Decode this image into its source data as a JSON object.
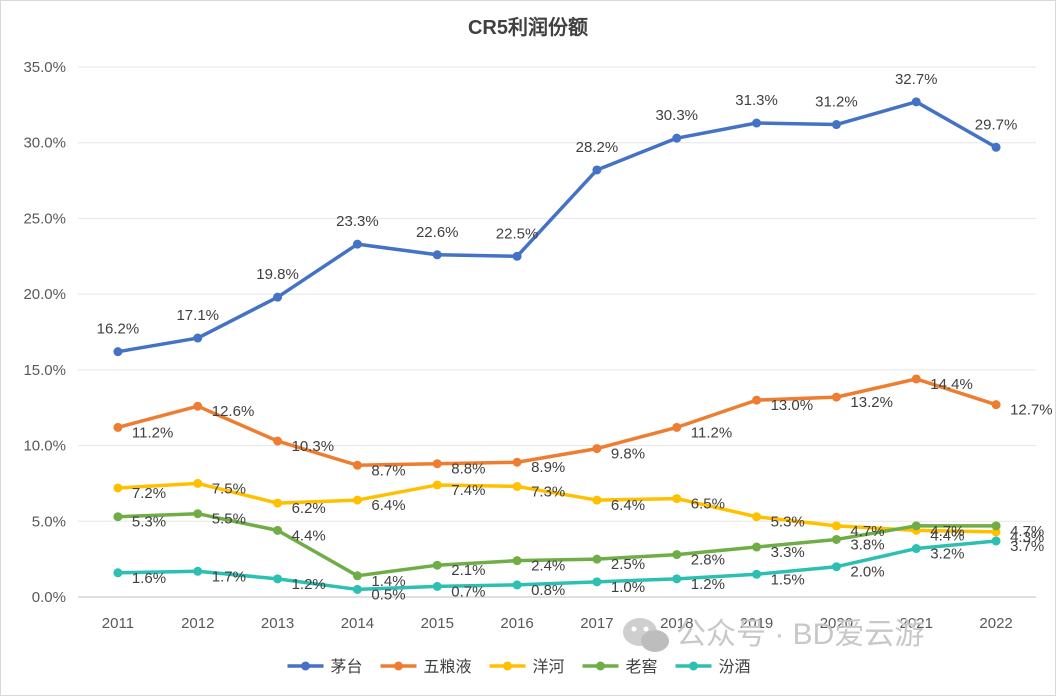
{
  "chart_data": {
    "type": "line",
    "title": "CR5利润份额",
    "xlabel": "",
    "ylabel": "",
    "categories": [
      "2011",
      "2012",
      "2013",
      "2014",
      "2015",
      "2016",
      "2017",
      "2018",
      "2019",
      "2020",
      "2021",
      "2022"
    ],
    "ylim": [
      0,
      35
    ],
    "yticks": [
      "0.0%",
      "5.0%",
      "10.0%",
      "15.0%",
      "20.0%",
      "25.0%",
      "30.0%",
      "35.0%"
    ],
    "grid": true,
    "legend_position": "bottom",
    "series": [
      {
        "name": "茅台",
        "color": "#4472c4",
        "values": [
          16.2,
          17.1,
          19.8,
          23.3,
          22.6,
          22.5,
          28.2,
          30.3,
          31.3,
          31.2,
          32.7,
          29.7
        ],
        "labels": [
          "16.2%",
          "17.1%",
          "19.8%",
          "23.3%",
          "22.6%",
          "22.5%",
          "28.2%",
          "30.3%",
          "31.3%",
          "31.2%",
          "32.7%",
          "29.7%"
        ]
      },
      {
        "name": "五粮液",
        "color": "#ed7d31",
        "values": [
          11.2,
          12.6,
          10.3,
          8.7,
          8.8,
          8.9,
          9.8,
          11.2,
          13.0,
          13.2,
          14.4,
          12.7
        ],
        "labels": [
          "11.2%",
          "12.6%",
          "10.3%",
          "8.7%",
          "8.8%",
          "8.9%",
          "9.8%",
          "11.2%",
          "13.0%",
          "13.2%",
          "14.4%",
          "12.7%"
        ]
      },
      {
        "name": "洋河",
        "color": "#ffc000",
        "values": [
          7.2,
          7.5,
          6.2,
          6.4,
          7.4,
          7.3,
          6.4,
          6.5,
          5.3,
          4.7,
          4.4,
          4.3
        ],
        "labels": [
          "7.2%",
          "7.5%",
          "6.2%",
          "6.4%",
          "7.4%",
          "7.3%",
          "6.4%",
          "6.5%",
          "5.3%",
          "4.7%",
          "4.4%",
          "4.3%"
        ]
      },
      {
        "name": "老窖",
        "color": "#70ad47",
        "values": [
          5.3,
          5.5,
          4.4,
          1.4,
          2.1,
          2.4,
          2.5,
          2.8,
          3.3,
          3.8,
          4.7,
          4.7
        ],
        "labels": [
          "5.3%",
          "5.5%",
          "4.4%",
          "1.4%",
          "2.1%",
          "2.4%",
          "2.5%",
          "2.8%",
          "3.3%",
          "3.8%",
          "4.7%",
          "4.7%"
        ]
      },
      {
        "name": "汾酒",
        "color": "#2ebfb3",
        "values": [
          1.6,
          1.7,
          1.2,
          0.5,
          0.7,
          0.8,
          1.0,
          1.2,
          1.5,
          2.0,
          3.2,
          3.7
        ],
        "labels": [
          "1.6%",
          "1.7%",
          "1.2%",
          "0.5%",
          "0.7%",
          "0.8%",
          "1.0%",
          "1.2%",
          "1.5%",
          "2.0%",
          "3.2%",
          "3.7%"
        ]
      }
    ]
  },
  "watermark": {
    "text": "公众号 · BD爱云游",
    "icon": "wechat-icon"
  }
}
